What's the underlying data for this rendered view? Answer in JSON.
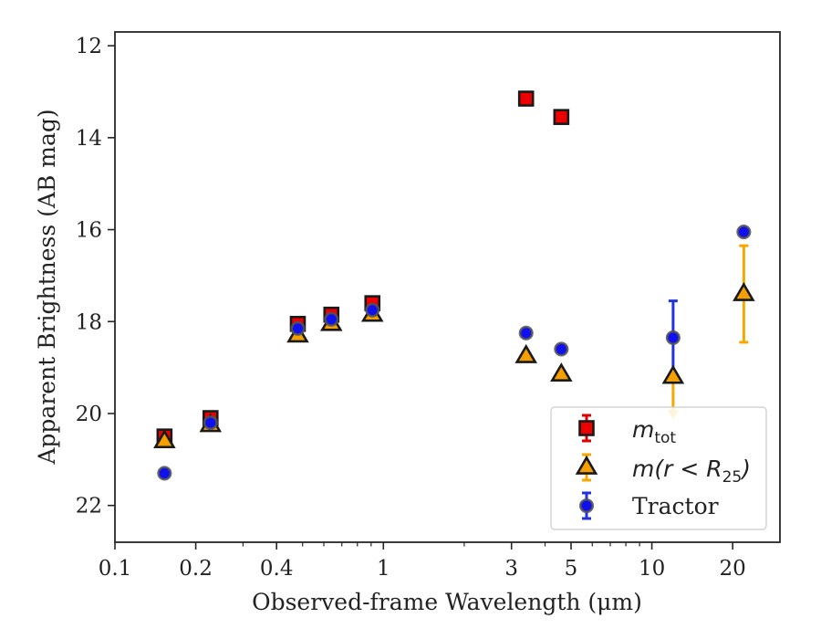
{
  "chart_data": {
    "type": "scatter",
    "title": "",
    "xlabel": "Observed-frame Wavelength (μm)",
    "ylabel": "Apparent Brightness (AB mag)",
    "xscale": "log",
    "xlim": [
      0.1,
      30
    ],
    "ylim": [
      22.8,
      11.7
    ],
    "y_inverted": true,
    "x_ticks": [
      0.1,
      0.2,
      0.4,
      1,
      3,
      5,
      10,
      20
    ],
    "x_tick_labels": [
      "0.1",
      "0.2",
      "0.4",
      "1",
      "3",
      "5",
      "10",
      "20"
    ],
    "y_ticks": [
      12,
      14,
      16,
      18,
      20,
      22
    ],
    "y_tick_labels": [
      "12",
      "14",
      "16",
      "18",
      "20",
      "22"
    ],
    "grid": false,
    "legend_position": "lower-right",
    "series": [
      {
        "name": "m_tot",
        "marker": "square",
        "color": "#ee0000",
        "edge_color": "#1a1a1a",
        "error_color": "#dd0000",
        "points": [
          {
            "x": 0.153,
            "y": 20.5
          },
          {
            "x": 0.227,
            "y": 20.1
          },
          {
            "x": 0.48,
            "y": 18.05
          },
          {
            "x": 0.64,
            "y": 17.85
          },
          {
            "x": 0.91,
            "y": 17.6
          },
          {
            "x": 3.4,
            "y": 13.15
          },
          {
            "x": 4.6,
            "y": 13.55
          }
        ]
      },
      {
        "name": "m(r < R25)",
        "marker": "triangle",
        "color": "#f5a000",
        "edge_color": "#1a1a1a",
        "error_color": "#f5a800",
        "points": [
          {
            "x": 0.153,
            "y": 20.6
          },
          {
            "x": 0.227,
            "y": 20.25
          },
          {
            "x": 0.48,
            "y": 18.3
          },
          {
            "x": 0.64,
            "y": 18.05
          },
          {
            "x": 0.91,
            "y": 17.85
          },
          {
            "x": 3.4,
            "y": 18.75
          },
          {
            "x": 4.6,
            "y": 19.15
          },
          {
            "x": 12,
            "y": 19.2,
            "upper_limit": true,
            "limit_to": 20.0
          },
          {
            "x": 22,
            "y": 17.4,
            "yerr": 1.05
          }
        ]
      },
      {
        "name": "Tractor",
        "marker": "circle",
        "color": "#1010ee",
        "edge_color": "#555555",
        "error_color": "#2233dd",
        "points": [
          {
            "x": 0.153,
            "y": 21.3
          },
          {
            "x": 0.227,
            "y": 20.2
          },
          {
            "x": 0.48,
            "y": 18.15
          },
          {
            "x": 0.64,
            "y": 17.95
          },
          {
            "x": 0.91,
            "y": 17.75
          },
          {
            "x": 3.4,
            "y": 18.25
          },
          {
            "x": 4.6,
            "y": 18.6
          },
          {
            "x": 12,
            "y": 18.35,
            "yerr": 0.8
          },
          {
            "x": 22,
            "y": 16.05
          }
        ]
      }
    ],
    "legend": [
      {
        "math_base": "m",
        "math_sub": "tot",
        "marker": "square"
      },
      {
        "math_prefix": "m(r < R",
        "math_sub": "25",
        "math_suffix": ")",
        "marker": "triangle"
      },
      {
        "text": "Tractor",
        "marker": "circle"
      }
    ]
  }
}
